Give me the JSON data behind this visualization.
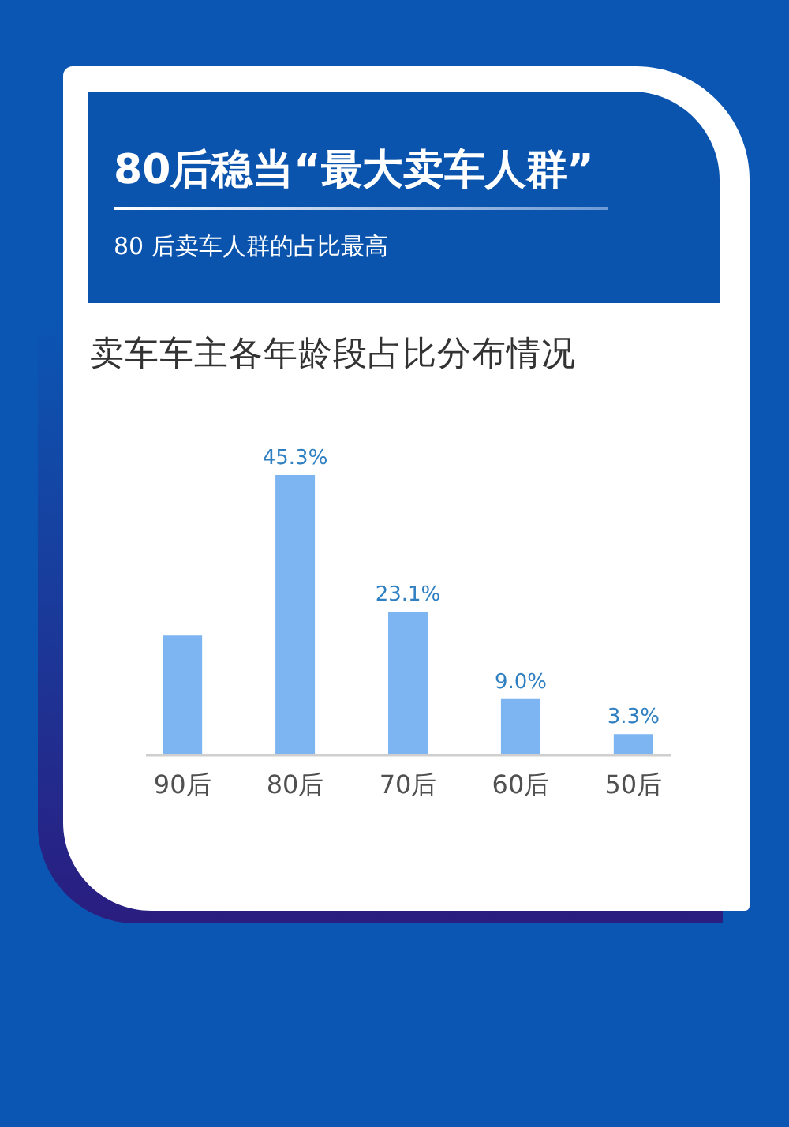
{
  "chart_data": {
    "type": "bar",
    "title": "80后稳当“最大卖车人群”",
    "subtitle": "80 后卖车人群的占比最高",
    "annotations": [
      "卖车车主各年龄段占比分布情况"
    ],
    "categories": [
      "90后",
      "80后",
      "70后",
      "60后",
      "50后"
    ],
    "values": [
      19.3,
      45.3,
      23.1,
      9.0,
      3.3
    ],
    "color": "#7cb5f2",
    "value_labels": [
      null,
      "45.3%",
      "23.1%",
      "9.0%",
      "3.3%"
    ],
    "tick_labels": "x"
  }
}
